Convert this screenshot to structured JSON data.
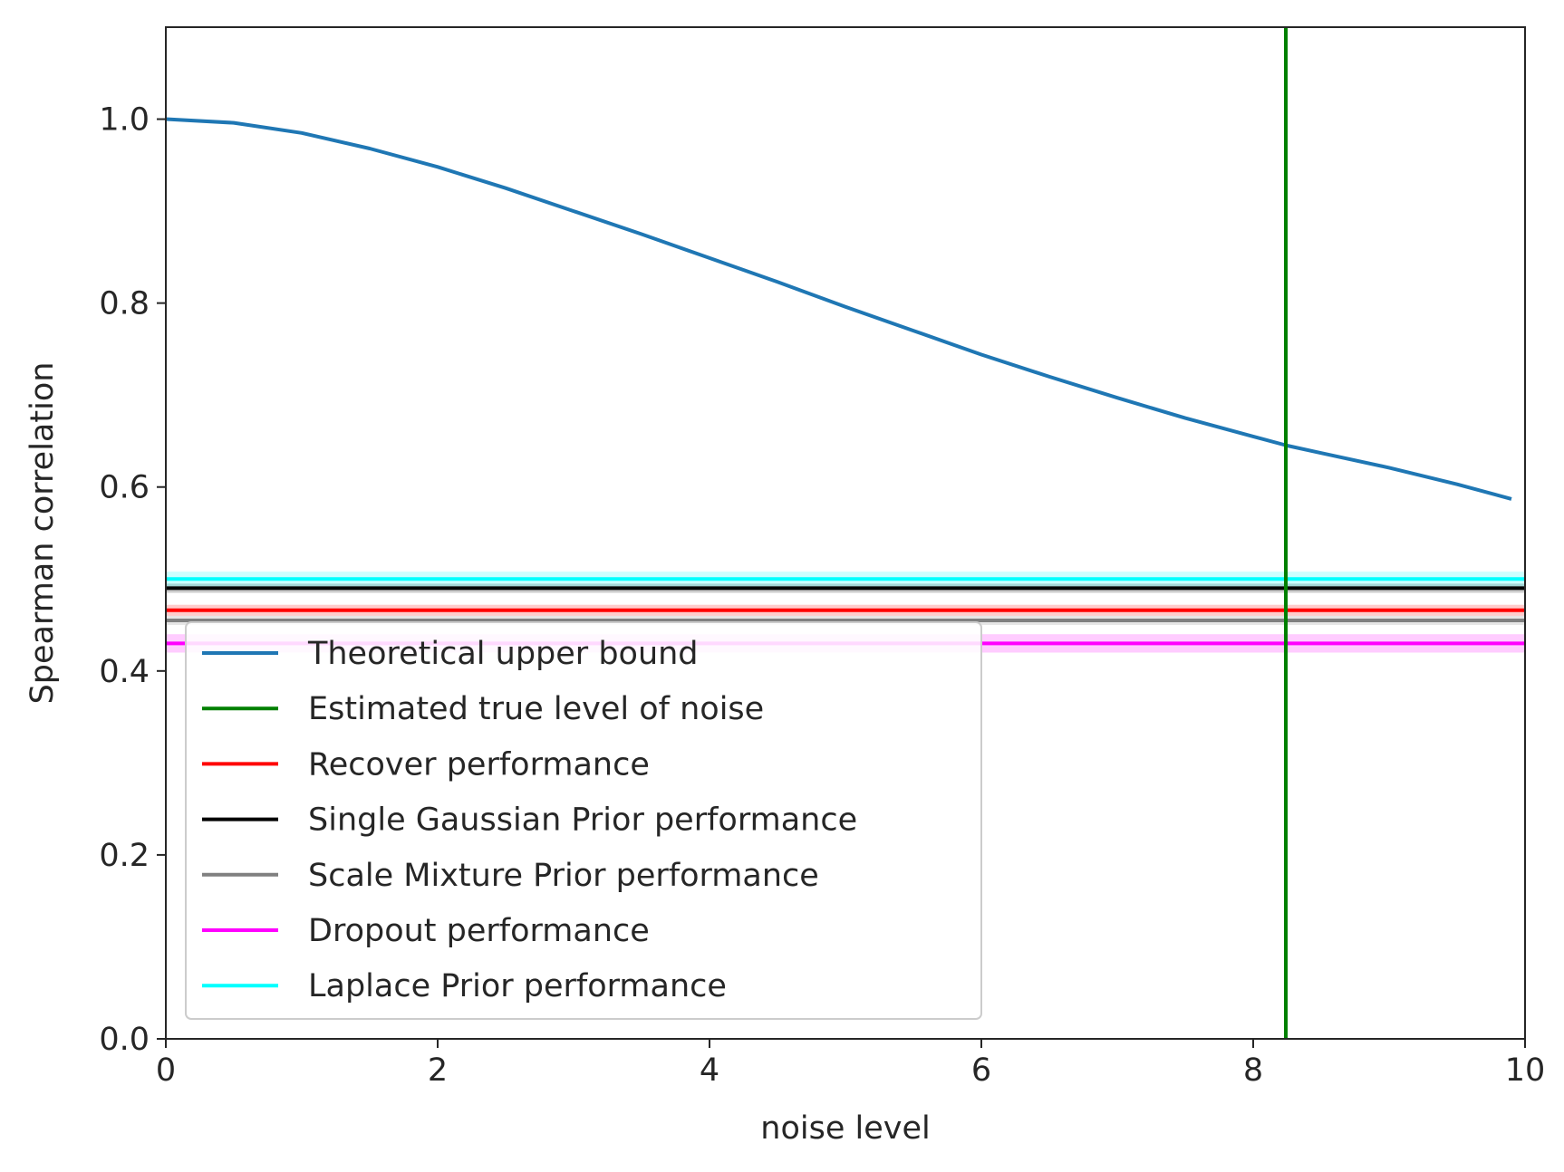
{
  "chart_data": {
    "type": "line",
    "xlabel": "noise level",
    "ylabel": "Spearman correlation",
    "xlim": [
      0,
      10
    ],
    "ylim": [
      0,
      1.1
    ],
    "xticks": [
      0,
      2,
      4,
      6,
      8,
      10
    ],
    "yticks": [
      0.0,
      0.2,
      0.4,
      0.6,
      0.8,
      1.0
    ],
    "xtick_labels": [
      "0",
      "2",
      "4",
      "6",
      "8",
      "10"
    ],
    "ytick_labels": [
      "0.0",
      "0.2",
      "0.4",
      "0.6",
      "0.8",
      "1.0"
    ],
    "grid": false,
    "legend_position": "lower-left",
    "curve": {
      "name": "Theoretical upper bound",
      "color": "#1f77b4",
      "x": [
        0,
        0.5,
        1,
        1.5,
        2,
        2.5,
        3,
        3.5,
        4,
        4.5,
        5,
        5.5,
        6,
        6.5,
        7,
        7.5,
        8,
        8.25,
        8.5,
        9,
        9.5,
        9.9
      ],
      "y": [
        1.0,
        0.996,
        0.985,
        0.968,
        0.948,
        0.925,
        0.9,
        0.875,
        0.849,
        0.823,
        0.796,
        0.77,
        0.744,
        0.72,
        0.697,
        0.675,
        0.655,
        0.645,
        0.637,
        0.621,
        0.603,
        0.587
      ]
    },
    "vertical_line": {
      "name": "Estimated true level of noise",
      "color": "#008000",
      "x": 8.24
    },
    "horizontal_lines": [
      {
        "name": "Recover performance",
        "color": "#ff0000",
        "y": 0.466,
        "band": 0.006
      },
      {
        "name": "Single Gaussian Prior performance",
        "color": "#000000",
        "y": 0.49,
        "band": 0.005
      },
      {
        "name": "Scale Mixture Prior performance",
        "color": "#808080",
        "y": 0.455,
        "band": 0.005
      },
      {
        "name": "Dropout performance",
        "color": "#ff00ff",
        "y": 0.43,
        "band": 0.01
      },
      {
        "name": "Laplace Prior performance",
        "color": "#00ffff",
        "y": 0.5,
        "band": 0.008
      }
    ],
    "legend": [
      {
        "label": "Theoretical upper bound",
        "color": "#1f77b4"
      },
      {
        "label": "Estimated true level of noise",
        "color": "#008000"
      },
      {
        "label": "Recover performance",
        "color": "#ff0000"
      },
      {
        "label": "Single Gaussian Prior performance",
        "color": "#000000"
      },
      {
        "label": "Scale Mixture Prior performance",
        "color": "#808080"
      },
      {
        "label": "Dropout performance",
        "color": "#ff00ff"
      },
      {
        "label": "Laplace Prior performance",
        "color": "#00ffff"
      }
    ]
  }
}
